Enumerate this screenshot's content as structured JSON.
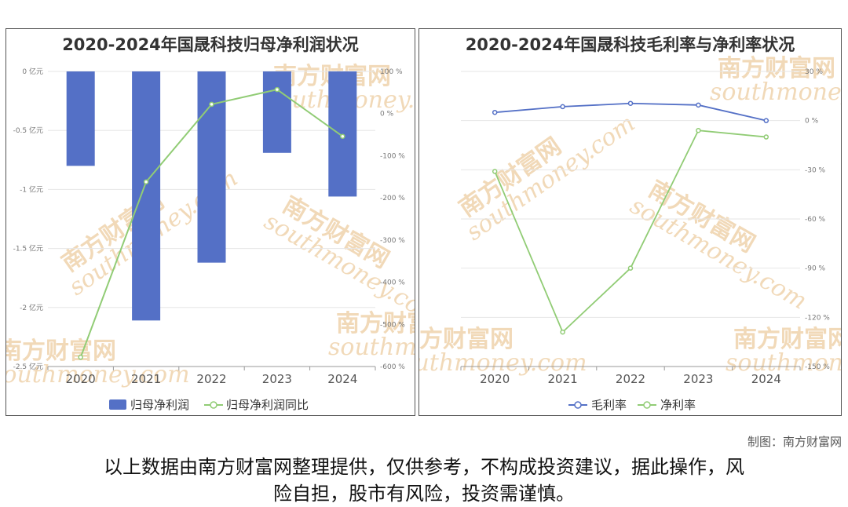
{
  "chart_data": [
    {
      "type": "bar",
      "title": "2020-2024年国晟科技归母净利润状况",
      "categories": [
        "2020",
        "2021",
        "2022",
        "2023",
        "2024"
      ],
      "left_axis": {
        "ticks": [
          "0 亿元",
          "-0.5 亿元",
          "-1 亿元",
          "-1.5 亿元",
          "-2 亿元",
          "-2.5 亿元"
        ],
        "range": [
          -2.5,
          0
        ]
      },
      "right_axis": {
        "ticks": [
          "100 %",
          "0 %",
          "-100 %",
          "-200 %",
          "-300 %",
          "-400 %",
          "-500 %",
          "-600 %"
        ],
        "range": [
          -600,
          100
        ]
      },
      "series": [
        {
          "name": "归母净利润",
          "type": "bar",
          "axis": "left",
          "color": "#5470c6",
          "values": [
            -0.8,
            -2.11,
            -1.62,
            -0.69,
            -1.06
          ]
        },
        {
          "name": "归母净利润同比",
          "type": "line",
          "axis": "right",
          "color": "#91cc75",
          "values": [
            -578,
            -162,
            22,
            57,
            -54
          ]
        }
      ],
      "legend_position": "bottom"
    },
    {
      "type": "line",
      "title": "2020-2024年国晟科技毛利率与净利率状况",
      "categories": [
        "2020",
        "2021",
        "2022",
        "2023",
        "2024"
      ],
      "right_axis": {
        "ticks": [
          "30 %",
          "0 %",
          "-30 %",
          "-60 %",
          "-90 %",
          "-120 %",
          "-150 %"
        ],
        "range": [
          -150,
          30
        ]
      },
      "series": [
        {
          "name": "毛利率",
          "color": "#5470c6",
          "values": [
            5,
            8.5,
            10.5,
            9.5,
            0
          ]
        },
        {
          "name": "净利率",
          "color": "#91cc75",
          "values": [
            -31,
            -129,
            -90,
            -6,
            -10
          ]
        }
      ],
      "legend_position": "bottom"
    }
  ],
  "watermark": {
    "cn": "南方财富网",
    "en": "southmoney.com"
  },
  "credit": "制图：南方财富网",
  "disclaimer_line1": "以上数据由南方财富网整理提供，仅供参考，不构成投资建议，据此操作，风",
  "disclaimer_line2": "险自担，股市有风险，投资需谨慎。"
}
